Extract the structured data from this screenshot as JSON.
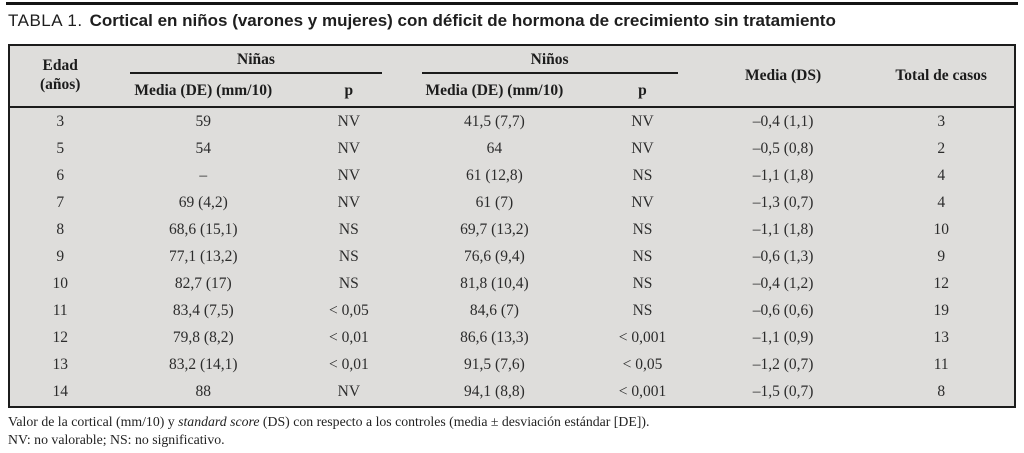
{
  "colors": {
    "table_background": "#dedddb",
    "rule_color": "#1c1c1c",
    "text_color": "#1e1e1e"
  },
  "page": {
    "title_label": "TABLA 1.",
    "title_text": "Cortical en niños (varones y mujeres) con déficit de hormona de crecimiento sin tratamiento"
  },
  "table": {
    "headers": {
      "edad_line1": "Edad",
      "edad_line2": "(años)",
      "ninas_group": "Niñas",
      "ninos_group": "Niños",
      "ninas_media": "Media (DE) (mm/10)",
      "ninas_p": "p",
      "ninos_media": "Media (DE) (mm/10)",
      "ninos_p": "p",
      "media_ds": "Media (DS)",
      "total": "Total de casos"
    },
    "column_keys": [
      "edad",
      "ninas_media",
      "ninas_p",
      "ninos_media",
      "ninos_p",
      "media_ds",
      "total"
    ],
    "rows": [
      {
        "edad": "3",
        "ninas_media": "59",
        "ninas_p": "NV",
        "ninos_media": "41,5 (7,7)",
        "ninos_p": "NV",
        "media_ds": "–0,4 (1,1)",
        "total": "3"
      },
      {
        "edad": "5",
        "ninas_media": "54",
        "ninas_p": "NV",
        "ninos_media": "64",
        "ninos_p": "NV",
        "media_ds": "–0,5 (0,8)",
        "total": "2"
      },
      {
        "edad": "6",
        "ninas_media": "–",
        "ninas_p": "NV",
        "ninos_media": "61 (12,8)",
        "ninos_p": "NS",
        "media_ds": "–1,1 (1,8)",
        "total": "4"
      },
      {
        "edad": "7",
        "ninas_media": "69 (4,2)",
        "ninas_p": "NV",
        "ninos_media": "61 (7)",
        "ninos_p": "NV",
        "media_ds": "–1,3 (0,7)",
        "total": "4"
      },
      {
        "edad": "8",
        "ninas_media": "68,6 (15,1)",
        "ninas_p": "NS",
        "ninos_media": "69,7 (13,2)",
        "ninos_p": "NS",
        "media_ds": "–1,1 (1,8)",
        "total": "10"
      },
      {
        "edad": "9",
        "ninas_media": "77,1 (13,2)",
        "ninas_p": "NS",
        "ninos_media": "76,6 (9,4)",
        "ninos_p": "NS",
        "media_ds": "–0,6 (1,3)",
        "total": "9"
      },
      {
        "edad": "10",
        "ninas_media": "82,7 (17)",
        "ninas_p": "NS",
        "ninos_media": "81,8 (10,4)",
        "ninos_p": "NS",
        "media_ds": "–0,4 (1,2)",
        "total": "12"
      },
      {
        "edad": "11",
        "ninas_media": "83,4 (7,5)",
        "ninas_p": "< 0,05",
        "ninos_media": "84,6 (7)",
        "ninos_p": "NS",
        "media_ds": "–0,6 (0,6)",
        "total": "19"
      },
      {
        "edad": "12",
        "ninas_media": "79,8 (8,2)",
        "ninas_p": "< 0,01",
        "ninos_media": "86,6 (13,3)",
        "ninos_p": "< 0,001",
        "media_ds": "–1,1 (0,9)",
        "total": "13"
      },
      {
        "edad": "13",
        "ninas_media": "83,2 (14,1)",
        "ninas_p": "< 0,01",
        "ninos_media": "91,5 (7,6)",
        "ninos_p": "< 0,05",
        "media_ds": "–1,2 (0,7)",
        "total": "11"
      },
      {
        "edad": "14",
        "ninas_media": "88",
        "ninas_p": "NV",
        "ninos_media": "94,1 (8,8)",
        "ninos_p": "< 0,001",
        "media_ds": "–1,5 (0,7)",
        "total": "8"
      }
    ]
  },
  "footnotes": {
    "line1_prefix": "Valor de la cortical (mm/10) y ",
    "line1_italic": "standard score",
    "line1_suffix": " (DS) con respecto a los controles (media ± desviación estándar [DE]).",
    "line2": "NV: no valorable; NS: no significativo."
  }
}
